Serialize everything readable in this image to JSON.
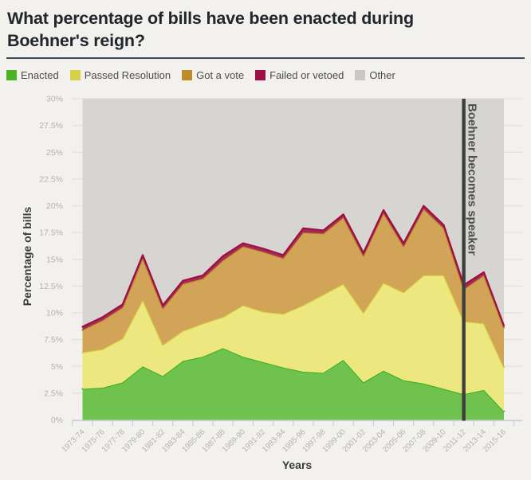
{
  "header": {
    "title": "What percentage of bills have been enacted during Boehner's reign?"
  },
  "legend": {
    "items": [
      {
        "label": "Enacted",
        "color": "#4bb327"
      },
      {
        "label": "Passed Resolution",
        "color": "#d6d243"
      },
      {
        "label": "Got a vote",
        "color": "#bf8d28"
      },
      {
        "label": "Failed or vetoed",
        "color": "#9d0f45"
      },
      {
        "label": "Other",
        "color": "#c9c8c5"
      }
    ]
  },
  "chart_data": {
    "type": "area",
    "stacked": true,
    "title": "What percentage of bills have been enacted during Boehner's reign?",
    "xlabel": "Years",
    "ylabel": "Percentage of bills",
    "ylim": [
      0,
      30
    ],
    "ytick_step": 2.5,
    "ytick_labels": [
      "0%",
      "2.5%",
      "5%",
      "7.5%",
      "10%",
      "12.5%",
      "15%",
      "17.5%",
      "20%",
      "22.5%",
      "25%",
      "27.5%",
      "30%"
    ],
    "grid": true,
    "legend_position": "top",
    "x": [
      "1973-74",
      "1975-76",
      "1977-78",
      "1979-80",
      "1981-82",
      "1983-84",
      "1985-86",
      "1987-88",
      "1989-90",
      "1991-92",
      "1993-94",
      "1995-96",
      "1997-98",
      "1999-00",
      "2001-02",
      "2003-04",
      "2005-06",
      "2007-08",
      "2009-10",
      "2011-12",
      "2013-14",
      "2015-16"
    ],
    "series": [
      {
        "name": "Enacted",
        "fill": "#6fc24e",
        "stroke": "#3fb022",
        "values": [
          2.9,
          3.0,
          3.5,
          5.0,
          4.1,
          5.5,
          5.9,
          6.7,
          5.9,
          5.4,
          4.9,
          4.5,
          4.4,
          5.6,
          3.5,
          4.6,
          3.7,
          3.4,
          2.9,
          2.4,
          2.8,
          0.8
        ]
      },
      {
        "name": "Passed Resolution",
        "fill": "#ece87f",
        "stroke": "#d8d441",
        "values": [
          3.4,
          3.6,
          4.1,
          6.2,
          2.9,
          2.8,
          3.1,
          2.9,
          4.8,
          4.7,
          5.0,
          6.2,
          7.3,
          7.1,
          6.5,
          8.2,
          8.2,
          10.1,
          10.6,
          6.8,
          6.2,
          4.1
        ]
      },
      {
        "name": "Got a vote",
        "fill": "#d1a457",
        "stroke": "#bd8c27",
        "values": [
          2.1,
          2.7,
          2.9,
          3.9,
          3.4,
          4.4,
          4.2,
          5.3,
          5.5,
          5.6,
          5.2,
          6.8,
          5.7,
          6.2,
          5.3,
          6.5,
          4.3,
          6.2,
          4.4,
          3.0,
          4.5,
          3.7
        ]
      },
      {
        "name": "Failed or vetoed",
        "fill": "#a62a56",
        "stroke": "#9d0f45",
        "values": [
          0.3,
          0.3,
          0.3,
          0.3,
          0.3,
          0.3,
          0.3,
          0.4,
          0.3,
          0.3,
          0.3,
          0.4,
          0.3,
          0.3,
          0.3,
          0.3,
          0.3,
          0.3,
          0.3,
          0.4,
          0.3,
          0.2
        ]
      },
      {
        "name": "Other",
        "fill": "#d3d2cf",
        "stroke": "none",
        "fills_to_axis_top": true
      }
    ],
    "annotation": {
      "text": "Boehner becomes speaker",
      "x": "2011-12",
      "line_color": "#3e3e3e",
      "text_color": "#4f4f4f"
    }
  }
}
